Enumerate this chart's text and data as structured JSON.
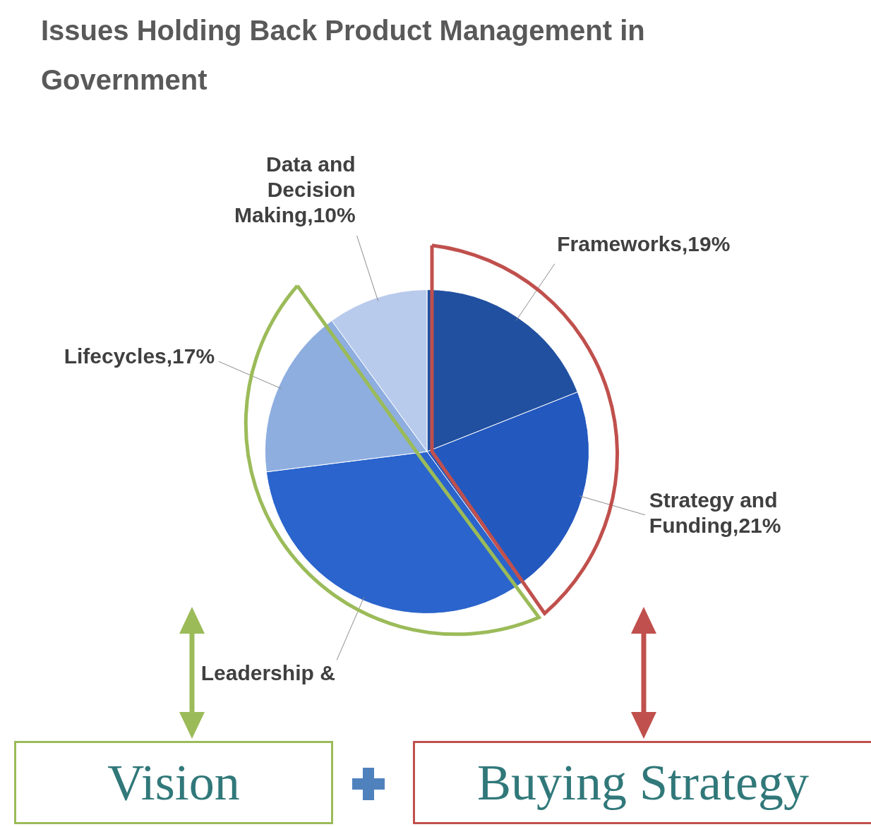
{
  "chart_data": {
    "type": "pie",
    "title": "Issues Holding Back Product Management in Government",
    "categories": [
      "Frameworks",
      "Strategy and Funding",
      "Leadership &",
      "Lifecycles",
      "Data and Decision Making"
    ],
    "values": [
      19,
      21,
      33,
      17,
      10
    ],
    "value_labels": [
      "19%",
      "21%",
      null,
      "17%",
      "10%"
    ],
    "colors": [
      "#2150a0",
      "#2358be",
      "#2a64cc",
      "#8eaee0",
      "#b9cbec"
    ],
    "annotations": [
      "Vision",
      "Buying Strategy"
    ]
  }
}
